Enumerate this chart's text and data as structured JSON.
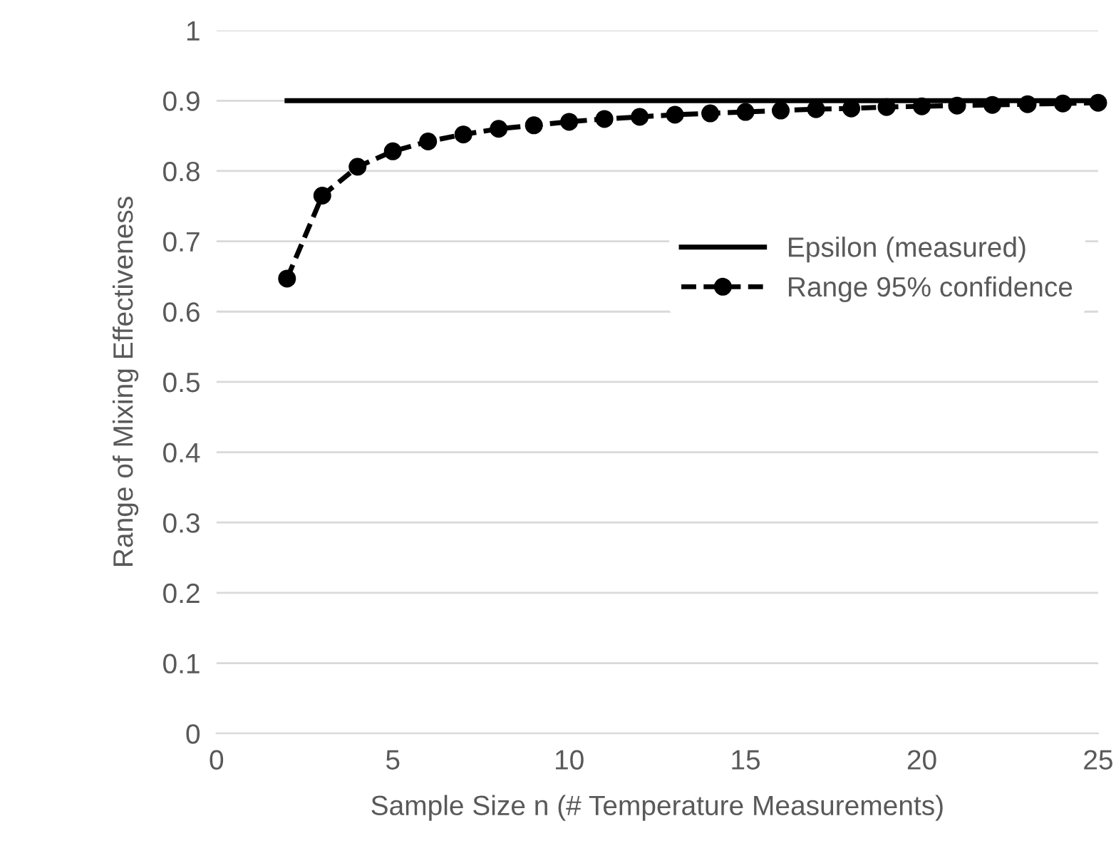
{
  "chart_data": {
    "type": "line",
    "xlabel": "Sample Size n (# Temperature Measurements)",
    "ylabel": "Range of Mixing Effectiveness",
    "xlim": [
      0,
      25
    ],
    "xticks": [
      0,
      5,
      10,
      15,
      20,
      25
    ],
    "ylim": [
      0,
      1
    ],
    "yticks": [
      0,
      0.1,
      0.2,
      0.3,
      0.4,
      0.5,
      0.6,
      0.7,
      0.8,
      0.9,
      1
    ],
    "grid": "y",
    "legend": "right",
    "series": [
      {
        "name": "Epsilon (measured)",
        "color": "#000000",
        "x": [
          2,
          25
        ],
        "values": [
          0.9,
          0.9
        ],
        "marker": "none",
        "line_style": "solid"
      },
      {
        "name": "Range 95% confidence",
        "color": "#000000",
        "x": [
          2,
          3,
          4,
          5,
          6,
          7,
          8,
          9,
          10,
          11,
          12,
          13,
          14,
          15,
          16,
          17,
          18,
          19,
          20,
          21,
          22,
          23,
          24,
          25
        ],
        "values": [
          0.647,
          0.765,
          0.806,
          0.828,
          0.842,
          0.852,
          0.86,
          0.865,
          0.87,
          0.874,
          0.877,
          0.88,
          0.882,
          0.884,
          0.886,
          0.888,
          0.889,
          0.891,
          0.892,
          0.893,
          0.894,
          0.895,
          0.896,
          0.897
        ],
        "marker": "circle",
        "line_style": "dashed"
      }
    ]
  }
}
